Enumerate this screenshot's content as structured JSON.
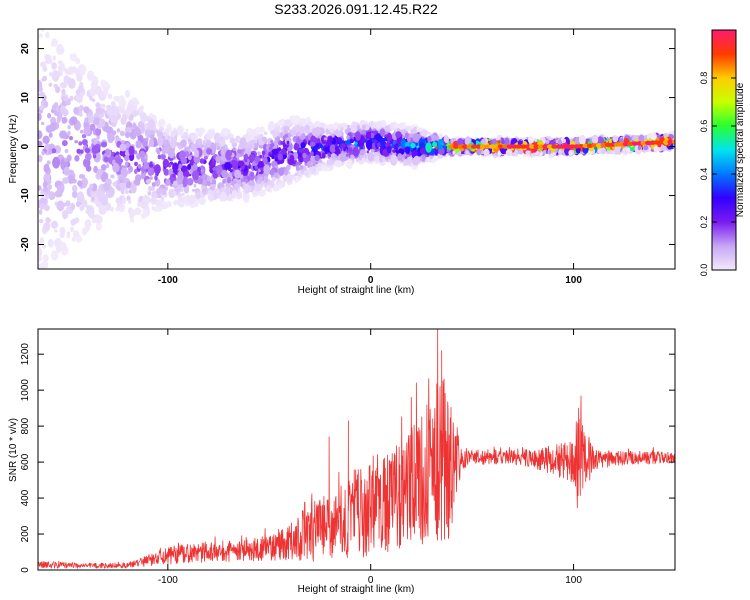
{
  "page": {
    "title": "S233.2026.091.12.45.R22"
  },
  "chart_data": [
    {
      "type": "heatmap",
      "title": "S233.2026.091.12.45.R22",
      "xlabel": "Height of straight line (km)",
      "ylabel": "Frequency (Hz)",
      "xlim": [
        -164,
        150
      ],
      "ylim": [
        -25,
        24
      ],
      "xticks": [
        -100,
        0,
        100
      ],
      "xtick_labels": [
        "-100",
        "0",
        "100"
      ],
      "yticks": [
        -20,
        -10,
        0,
        10,
        20
      ],
      "ytick_labels": [
        "-20",
        "-10",
        "0",
        "10",
        "20"
      ],
      "band": {
        "x": [
          -164,
          -120,
          -100,
          -60,
          -40,
          -20,
          0,
          20,
          40,
          60,
          100,
          150
        ],
        "center": [
          0,
          -2,
          -4,
          -4,
          -1,
          0,
          1,
          0,
          0,
          0,
          0,
          1
        ],
        "halfwidth": [
          24,
          10,
          6,
          5,
          5,
          3,
          3,
          3,
          1,
          1,
          1,
          1
        ],
        "peak_amplitude": [
          0.12,
          0.18,
          0.24,
          0.26,
          0.3,
          0.38,
          0.42,
          0.45,
          0.92,
          0.94,
          0.95,
          0.97
        ]
      },
      "colorbar": {
        "label": "Normalized spectral amplitude",
        "range": [
          0,
          1
        ],
        "ticks": [
          0.0,
          0.2,
          0.4,
          0.6,
          0.8
        ],
        "tick_labels": [
          "0.0",
          "0.2",
          "0.4",
          "0.6",
          "0.8"
        ],
        "colors": [
          "#f3eafc",
          "#c7a6f5",
          "#7a1cf0",
          "#3200ff",
          "#0078ff",
          "#00e5ee",
          "#28ff30",
          "#c8ff00",
          "#ffcc00",
          "#ff3a00",
          "#ff1a70"
        ]
      }
    },
    {
      "type": "line",
      "xlabel": "Height of straight line (km)",
      "ylabel": "SNR (10 * v/v)",
      "xlim": [
        -164,
        150
      ],
      "ylim": [
        0,
        1340
      ],
      "xticks": [
        -100,
        0,
        100
      ],
      "xtick_labels": [
        "-100",
        "0",
        "100"
      ],
      "yticks": [
        0,
        200,
        400,
        600,
        800,
        1000,
        1200
      ],
      "ytick_labels": [
        "0",
        "200",
        "400",
        "600",
        "800",
        "1000",
        "1200"
      ],
      "color": "#ee3333",
      "envelope": {
        "x": [
          -164,
          -140,
          -120,
          -110,
          -100,
          -80,
          -60,
          -40,
          -30,
          -20,
          -10,
          0,
          10,
          20,
          30,
          35,
          40,
          45,
          50,
          60,
          80,
          100,
          102,
          110,
          120,
          140,
          150
        ],
        "mean": [
          30,
          25,
          25,
          50,
          80,
          100,
          110,
          150,
          200,
          260,
          300,
          330,
          380,
          470,
          560,
          600,
          580,
          620,
          630,
          630,
          620,
          600,
          620,
          610,
          620,
          630,
          620
        ],
        "spread": [
          20,
          15,
          15,
          30,
          50,
          60,
          60,
          100,
          160,
          200,
          250,
          260,
          280,
          330,
          420,
          500,
          380,
          60,
          50,
          40,
          50,
          120,
          300,
          60,
          40,
          40,
          30
        ]
      },
      "peaks": [
        {
          "x": -20.5,
          "y": 740
        },
        {
          "x": -11,
          "y": 830
        },
        {
          "x": 20,
          "y": 960
        },
        {
          "x": 22.5,
          "y": 1040
        },
        {
          "x": 33,
          "y": 1340
        },
        {
          "x": 35,
          "y": 1220
        },
        {
          "x": 102.5,
          "y": 900
        }
      ]
    }
  ]
}
